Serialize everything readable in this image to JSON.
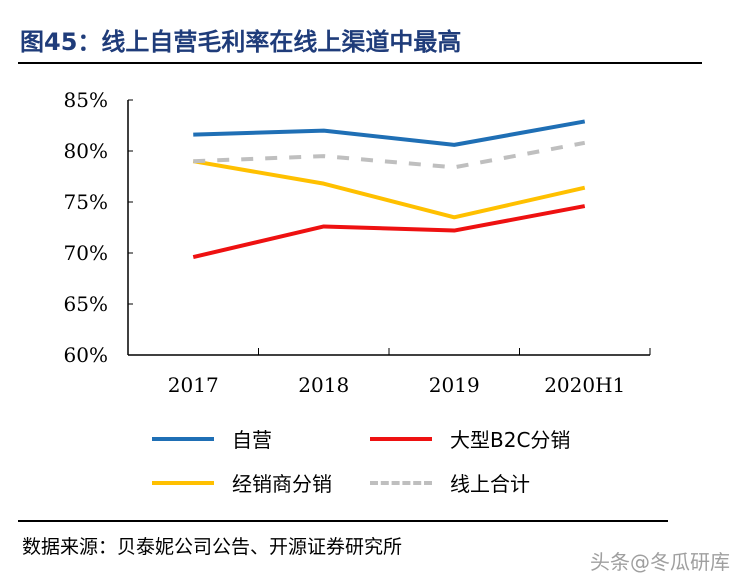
{
  "title": "图45：线上自营毛利率在线上渠道中最高",
  "source": "数据来源：贝泰妮公司公告、开源证券研究所",
  "watermark": "头条@冬瓜研库",
  "chart_data": {
    "type": "line",
    "categories": [
      "2017",
      "2018",
      "2019",
      "2020H1"
    ],
    "ylim": [
      60,
      85
    ],
    "yticks": [
      "60%",
      "65%",
      "70%",
      "75%",
      "80%",
      "85%"
    ],
    "ytick_values": [
      60,
      65,
      70,
      75,
      80,
      85
    ],
    "grid": false,
    "legend_placement": "bottom",
    "series": [
      {
        "name": "自营",
        "color": "#1f6fb5",
        "dashed": false,
        "values": [
          81.6,
          82.0,
          80.6,
          82.9
        ]
      },
      {
        "name": "大型B2C分销",
        "color": "#ee1111",
        "dashed": false,
        "values": [
          69.6,
          72.6,
          72.2,
          74.6
        ]
      },
      {
        "name": "经销商分销",
        "color": "#ffc000",
        "dashed": false,
        "values": [
          79.0,
          76.8,
          73.5,
          76.4
        ]
      },
      {
        "name": "线上合计",
        "color": "#bfbfbf",
        "dashed": true,
        "values": [
          79.0,
          79.5,
          78.4,
          80.8
        ]
      }
    ]
  }
}
